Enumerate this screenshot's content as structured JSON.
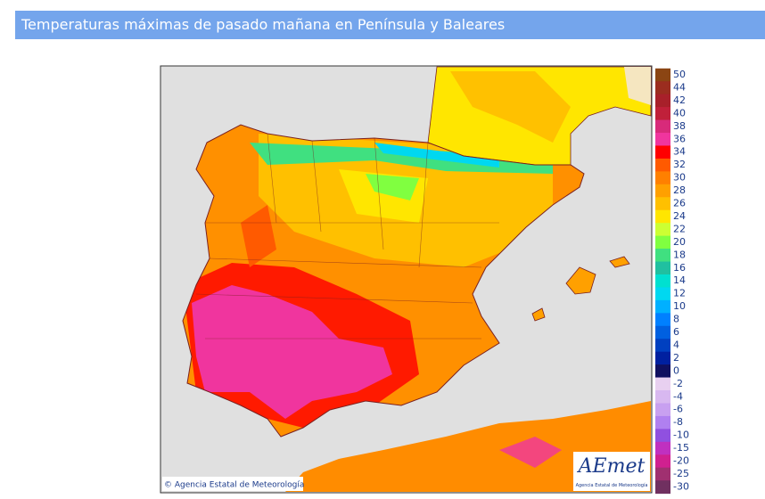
{
  "header": {
    "title": "Temperaturas máximas de pasado mañana en Península y Baleares"
  },
  "map": {
    "credit": "© Agencia Estatal de Meteorología",
    "logo": "AEmet",
    "logo_caption": "Agencia Estatal de Meteorología"
  },
  "legend": {
    "items": [
      {
        "value": 50,
        "color": "#8b4513"
      },
      {
        "value": 44,
        "color": "#9b2d1f"
      },
      {
        "value": 42,
        "color": "#a8202a"
      },
      {
        "value": 40,
        "color": "#c0203a"
      },
      {
        "value": 38,
        "color": "#d82a7a"
      },
      {
        "value": 36,
        "color": "#f0359e"
      },
      {
        "value": 34,
        "color": "#ff0000"
      },
      {
        "value": 32,
        "color": "#ff5a00"
      },
      {
        "value": 30,
        "color": "#ff8000"
      },
      {
        "value": 28,
        "color": "#ffa000"
      },
      {
        "value": 26,
        "color": "#ffc000"
      },
      {
        "value": 24,
        "color": "#ffe600"
      },
      {
        "value": 22,
        "color": "#ccff33"
      },
      {
        "value": 20,
        "color": "#80ff40"
      },
      {
        "value": 18,
        "color": "#40e080"
      },
      {
        "value": 16,
        "color": "#20c0a0"
      },
      {
        "value": 14,
        "color": "#00e0d0"
      },
      {
        "value": 12,
        "color": "#00d8f0"
      },
      {
        "value": 10,
        "color": "#00b0ff"
      },
      {
        "value": 8,
        "color": "#0080ff"
      },
      {
        "value": 6,
        "color": "#0060e0"
      },
      {
        "value": 4,
        "color": "#0040c0"
      },
      {
        "value": 2,
        "color": "#0020a0"
      },
      {
        "value": 0,
        "color": "#101060"
      },
      {
        "value": -2,
        "color": "#e8d0f0"
      },
      {
        "value": -4,
        "color": "#d8b8f0"
      },
      {
        "value": -6,
        "color": "#c8a0f0"
      },
      {
        "value": -8,
        "color": "#b080f0"
      },
      {
        "value": -10,
        "color": "#9050e0"
      },
      {
        "value": -15,
        "color": "#c030c0"
      },
      {
        "value": -20,
        "color": "#d02090"
      },
      {
        "value": -25,
        "color": "#a03070"
      },
      {
        "value": -30,
        "color": "#703060"
      }
    ]
  }
}
